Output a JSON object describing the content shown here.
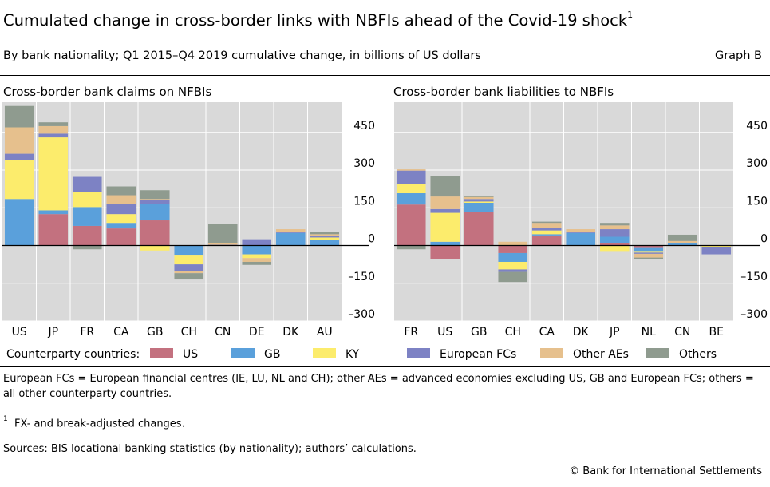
{
  "title": "Cumulated change in cross-border links with NBFIs ahead of the Covid-19 shock",
  "title_footnote": "1",
  "subtitle": "By bank nationality; Q1 2015–Q4 2019 cumulative change, in billions of US dollars",
  "graph_id": "Graph B",
  "legend_title": "Counterparty countries:",
  "notes": {
    "definitions": "European FCs = European financial centres (IE, LU, NL and CH); other AEs = advanced economies excluding US, GB and European FCs; others = all other counterparty countries.",
    "footnote_mark": "1",
    "footnote_text": "FX- and break-adjusted changes.",
    "sources": "Sources: BIS locational banking statistics (by nationality); authors’ calculations."
  },
  "copyright": "© Bank for International Settlements",
  "colors": {
    "US": "#c3717f",
    "GB": "#5aa0db",
    "KY": "#fcec6c",
    "European FCs": "#7d82c4",
    "Other AEs": "#e6c08d",
    "Others": "#8f9b8f",
    "plot_background": "#d9d9d9",
    "gridline": "#ffffff"
  },
  "chart_data": [
    {
      "type": "bar",
      "stacked": true,
      "title": "Cross-border bank claims on NFBIs",
      "categories": [
        "US",
        "JP",
        "FR",
        "CA",
        "GB",
        "CH",
        "CN",
        "DE",
        "DK",
        "AU"
      ],
      "yticks": [
        "450",
        "300",
        "150",
        "0",
        "–150",
        "–300"
      ],
      "ylim": [
        -300,
        570
      ],
      "grid": true,
      "series": [
        {
          "name": "US",
          "values": [
            0,
            125,
            78,
            68,
            100,
            0,
            0,
            0,
            0,
            0
          ]
        },
        {
          "name": "GB",
          "values": [
            185,
            15,
            75,
            22,
            65,
            -40,
            0,
            -35,
            50,
            22
          ]
        },
        {
          "name": "KY",
          "values": [
            155,
            290,
            60,
            35,
            -20,
            -35,
            0,
            -15,
            0,
            10
          ]
        },
        {
          "name": "European FCs",
          "values": [
            25,
            15,
            60,
            40,
            15,
            -25,
            3,
            25,
            5,
            5
          ]
        },
        {
          "name": "Other AEs",
          "values": [
            105,
            30,
            0,
            35,
            5,
            -10,
            7,
            -15,
            10,
            8
          ]
        },
        {
          "name": "Others",
          "values": [
            85,
            15,
            -15,
            35,
            35,
            -25,
            75,
            -12,
            0,
            10
          ]
        }
      ]
    },
    {
      "type": "bar",
      "stacked": true,
      "title": "Cross-border bank liabilities to NBFIs",
      "categories": [
        "FR",
        "US",
        "GB",
        "CH",
        "CA",
        "DK",
        "JP",
        "NL",
        "CN",
        "BE"
      ],
      "yticks": [
        "450",
        "300",
        "150",
        "0",
        "–150",
        "–300"
      ],
      "ylim": [
        -300,
        570
      ],
      "grid": true,
      "series": [
        {
          "name": "US",
          "values": [
            163,
            -55,
            135,
            -30,
            40,
            0,
            10,
            -10,
            0,
            0
          ]
        },
        {
          "name": "GB",
          "values": [
            45,
            15,
            35,
            -35,
            5,
            50,
            25,
            -15,
            8,
            0
          ]
        },
        {
          "name": "KY",
          "values": [
            35,
            115,
            5,
            -30,
            15,
            0,
            -25,
            -3,
            0,
            -5
          ]
        },
        {
          "name": "European FCs",
          "values": [
            55,
            15,
            10,
            -10,
            10,
            5,
            30,
            -5,
            0,
            -30
          ]
        },
        {
          "name": "Other AEs",
          "values": [
            5,
            50,
            8,
            15,
            20,
            10,
            15,
            -15,
            10,
            0
          ]
        },
        {
          "name": "Others",
          "values": [
            -15,
            80,
            5,
            -40,
            5,
            0,
            10,
            -5,
            25,
            0
          ]
        }
      ]
    }
  ]
}
